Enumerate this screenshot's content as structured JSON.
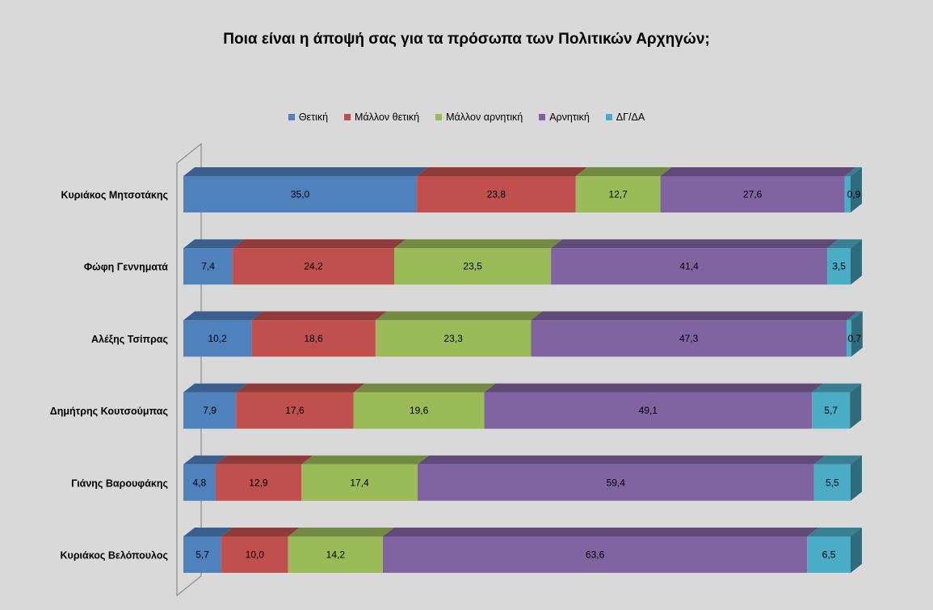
{
  "chart_data": {
    "type": "bar",
    "orientation": "horizontal",
    "stacked": true,
    "style": "3d",
    "title": "Ποια είναι η άποψή σας για τα πρόσωπα των Πολιτικών Αρχηγών;",
    "xlabel": "",
    "ylabel": "",
    "xlim": [
      0,
      100
    ],
    "legend_position": "top",
    "grid": false,
    "categories": [
      "Κυριάκος Μητσοτάκης",
      "Φώφη Γεννηματά",
      "Αλέξης Τσίπρας",
      "Δημήτρης Κουτσούμπας",
      "Γιάνης Βαρουφάκης",
      "Κυριάκος Βελόπουλος"
    ],
    "series": [
      {
        "name": "Θετική",
        "color": "#4f81bd",
        "values": [
          35.0,
          7.4,
          10.2,
          7.9,
          4.8,
          5.7
        ],
        "labels": [
          "35,0",
          "7,4",
          "10,2",
          "7,9",
          "4,8",
          "5,7"
        ]
      },
      {
        "name": "Μάλλον θετική",
        "color": "#c0504d",
        "values": [
          23.8,
          24.2,
          18.6,
          17.6,
          12.9,
          10.0
        ],
        "labels": [
          "23,8",
          "24,2",
          "18,6",
          "17,6",
          "12,9",
          "10,0"
        ]
      },
      {
        "name": "Μάλλον αρνητική",
        "color": "#9bbb59",
        "values": [
          12.7,
          23.5,
          23.3,
          19.6,
          17.4,
          14.2
        ],
        "labels": [
          "12,7",
          "23,5",
          "23,3",
          "19,6",
          "17,4",
          "14,2"
        ]
      },
      {
        "name": "Αρνητική",
        "color": "#8064a2",
        "values": [
          27.6,
          41.4,
          47.3,
          49.1,
          59.4,
          63.6
        ],
        "labels": [
          "27,6",
          "41,4",
          "47,3",
          "49,1",
          "59,4",
          "63,6"
        ]
      },
      {
        "name": "ΔΓ/ΔΑ",
        "color": "#4bacc6",
        "values": [
          0.9,
          3.5,
          0.7,
          5.7,
          5.5,
          6.5
        ],
        "labels": [
          "0,9",
          "3,5",
          "0,7",
          "5,7",
          "5,5",
          "6,5"
        ]
      }
    ]
  }
}
